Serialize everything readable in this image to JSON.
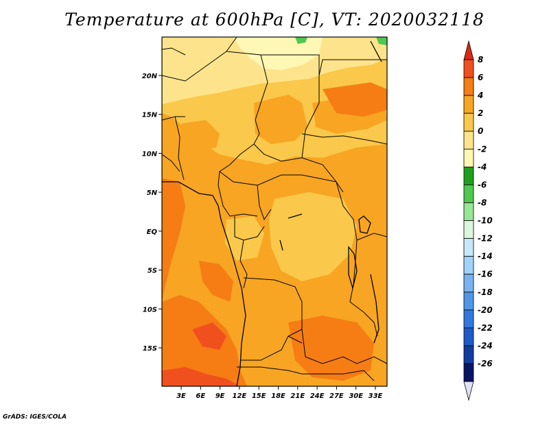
{
  "title": "Temperature at 600hPa [C], VT: 2020032118",
  "credit": "GrADS: IGES/COLA",
  "map": {
    "lat_labels": [
      "20N",
      "15N",
      "10N",
      "5N",
      "EQ",
      "5S",
      "10S",
      "15S"
    ],
    "lat_values": [
      20,
      15,
      10,
      5,
      0,
      -5,
      -10,
      -15
    ],
    "lon_labels": [
      "3E",
      "6E",
      "9E",
      "12E",
      "15E",
      "18E",
      "21E",
      "24E",
      "27E",
      "30E",
      "33E"
    ],
    "lon_values": [
      3,
      6,
      9,
      12,
      15,
      18,
      21,
      24,
      27,
      30,
      33
    ],
    "fill_colors": {
      "warm_6_8": "#f0501e",
      "warm_4_6": "#f57d14",
      "warm_2_4": "#f7a522",
      "warm_0_2": "#fac84a",
      "cool_m2_0": "#fde48c",
      "cool_m4_m2": "#fff7b4",
      "green": "#50c850"
    }
  },
  "colorbar": {
    "labels": [
      "8",
      "6",
      "4",
      "2",
      "0",
      "-2",
      "-4",
      "-6",
      "-8",
      "-10",
      "-12",
      "-14",
      "-16",
      "-18",
      "-20",
      "-22",
      "-24",
      "-26"
    ],
    "colors": [
      "#dc2814",
      "#f0501e",
      "#f57d14",
      "#f7a522",
      "#fac84a",
      "#fde48c",
      "#fff7b4",
      "#1ea01e",
      "#50c850",
      "#96e696",
      "#dcf5dc",
      "#c8e6fa",
      "#a0d2fa",
      "#78b4f0",
      "#5096e6",
      "#3278dc",
      "#1e5ac8",
      "#143ca0",
      "#0a1464"
    ],
    "top_arrow_color": "#dc2814",
    "bottom_arrow_color": "#e1e1f5"
  }
}
